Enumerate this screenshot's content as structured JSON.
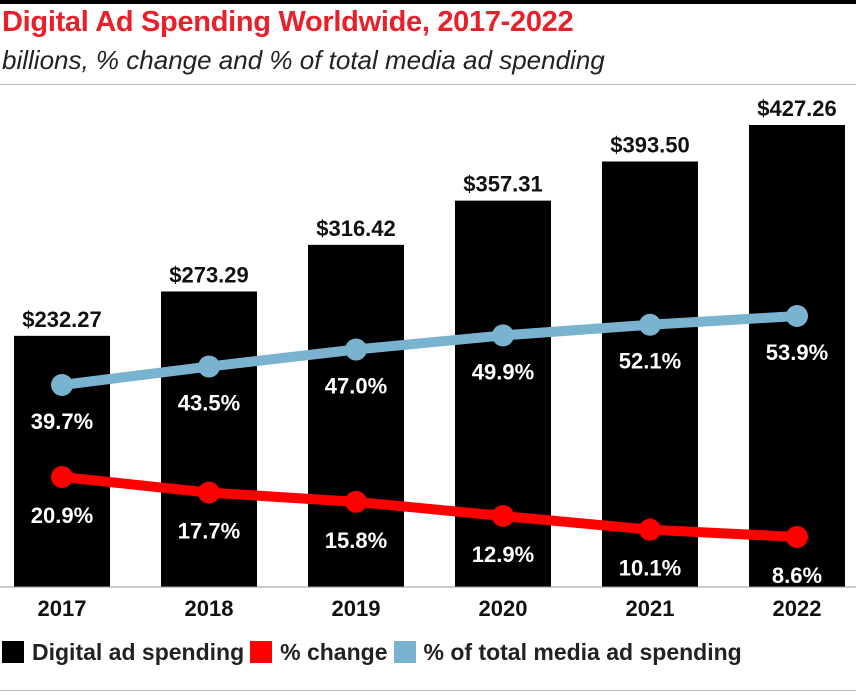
{
  "title": "Digital Ad Spending Worldwide, 2017-2022",
  "subtitle": "billions, % change and % of total media ad spending",
  "colors": {
    "bars": "#000000",
    "change": "#ff0000",
    "share": "#7ab3d0",
    "title": "#e8202a"
  },
  "legend": [
    {
      "label": "Digital ad spending",
      "color": "#000000"
    },
    {
      "label": "% change",
      "color": "#ff0000"
    },
    {
      "label": "% of total media ad spending",
      "color": "#7ab3d0"
    }
  ],
  "chart_data": {
    "type": "bar",
    "categories": [
      "2017",
      "2018",
      "2019",
      "2020",
      "2021",
      "2022"
    ],
    "series": [
      {
        "name": "Digital ad spending",
        "type": "bar",
        "values": [
          232.27,
          273.29,
          316.42,
          357.31,
          393.5,
          427.26
        ],
        "labels": [
          "$232.27",
          "$273.29",
          "$316.42",
          "$357.31",
          "$393.50",
          "$427.26"
        ]
      },
      {
        "name": "% change",
        "type": "line",
        "values": [
          20.9,
          17.7,
          15.8,
          12.9,
          10.1,
          8.6
        ],
        "labels": [
          "20.9%",
          "17.7%",
          "15.8%",
          "12.9%",
          "10.1%",
          "8.6%"
        ]
      },
      {
        "name": "% of total media ad spending",
        "type": "line",
        "values": [
          39.7,
          43.5,
          47.0,
          49.9,
          52.1,
          53.9
        ],
        "labels": [
          "39.7%",
          "43.5%",
          "47.0%",
          "49.9%",
          "52.1%",
          "53.9%"
        ]
      }
    ],
    "ylim": [
      0,
      450
    ],
    "grid": false,
    "legend_position": "bottom"
  }
}
